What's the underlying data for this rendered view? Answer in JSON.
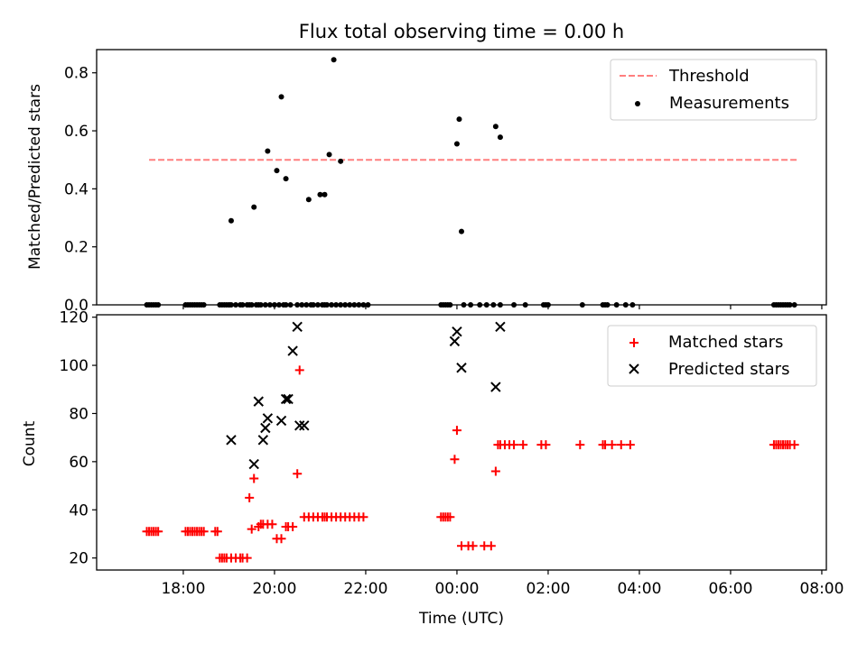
{
  "chart_data": [
    {
      "type": "scatter",
      "title": "Flux total observing time = 0.00 h",
      "ylabel": "Matched/Predicted stars",
      "xlabel": "",
      "x_unit": "hours relative to 00:00 UTC",
      "xlim": [
        -7.9,
        8.1
      ],
      "ylim": [
        0,
        0.88
      ],
      "yticks": [
        0.0,
        0.2,
        0.4,
        0.6,
        0.8
      ],
      "ytick_labels": [
        "0.0",
        "0.2",
        "0.4",
        "0.6",
        "0.8"
      ],
      "legend_position": "top-right",
      "series": [
        {
          "name": "Threshold",
          "kind": "dashed-line",
          "color": "#ff7f7f",
          "x": [
            -6.75,
            7.45
          ],
          "y": [
            0.5,
            0.5
          ]
        },
        {
          "name": "Measurements",
          "kind": "dot",
          "color": "#000000",
          "x": [
            -6.8,
            -6.75,
            -6.7,
            -6.65,
            -6.6,
            -6.55,
            -5.95,
            -5.9,
            -5.85,
            -5.8,
            -5.75,
            -5.7,
            -5.65,
            -5.6,
            -5.55,
            -5.2,
            -5.15,
            -5.1,
            -5.05,
            -5.0,
            -4.95,
            -4.85,
            -4.75,
            -4.7,
            -4.6,
            -4.55,
            -4.5,
            -4.4,
            -4.35,
            -4.3,
            -4.2,
            -4.1,
            -4.0,
            -3.9,
            -3.8,
            -3.75,
            -3.65,
            -3.5,
            -3.4,
            -3.3,
            -3.2,
            -3.15,
            -3.05,
            -2.95,
            -2.9,
            -2.85,
            -2.75,
            -2.65,
            -2.55,
            -2.45,
            -2.35,
            -2.25,
            -2.15,
            -2.05,
            -1.95,
            -0.35,
            -0.3,
            -0.25,
            -0.2,
            -0.15,
            0.15,
            0.3,
            0.5,
            0.65,
            0.8,
            0.95,
            1.25,
            1.5,
            1.9,
            1.95,
            2.0,
            2.75,
            3.2,
            3.25,
            3.3,
            3.5,
            3.7,
            3.85,
            6.95,
            7.0,
            7.05,
            7.1,
            7.15,
            7.2,
            7.25,
            7.3,
            7.4,
            -4.95,
            -4.45,
            -4.15,
            -3.95,
            -3.85,
            -3.75,
            -3.25,
            -3.0,
            -2.9,
            -2.8,
            -2.7,
            -2.55,
            0.0,
            0.05,
            0.1,
            0.85,
            0.95
          ],
          "y": [
            0,
            0,
            0,
            0,
            0,
            0,
            0,
            0,
            0,
            0,
            0,
            0,
            0,
            0,
            0,
            0,
            0,
            0,
            0,
            0,
            0,
            0,
            0,
            0,
            0,
            0,
            0,
            0,
            0,
            0,
            0,
            0,
            0,
            0,
            0,
            0,
            0,
            0,
            0,
            0,
            0,
            0,
            0,
            0,
            0,
            0,
            0,
            0,
            0,
            0,
            0,
            0,
            0,
            0,
            0,
            0,
            0,
            0,
            0,
            0,
            0,
            0,
            0,
            0,
            0,
            0,
            0,
            0,
            0,
            0,
            0,
            0,
            0,
            0,
            0,
            0,
            0,
            0,
            0,
            0,
            0,
            0,
            0,
            0,
            0,
            0,
            0,
            0.29,
            0.337,
            0.53,
            0.463,
            0.717,
            0.435,
            0.363,
            0.38,
            0.38,
            0.518,
            0.845,
            0.495,
            0.555,
            0.64,
            0.253,
            0.615,
            0.578
          ]
        }
      ]
    },
    {
      "type": "scatter",
      "title": "",
      "xlabel": "Time (UTC)",
      "ylabel": "Count",
      "x_unit": "hours relative to 00:00 UTC",
      "xlim": [
        -7.9,
        8.1
      ],
      "ylim": [
        15,
        121
      ],
      "yticks": [
        20,
        40,
        60,
        80,
        100,
        120
      ],
      "ytick_labels": [
        "20",
        "40",
        "60",
        "80",
        "100",
        "120"
      ],
      "xticks": [
        -6,
        -4,
        -2,
        0,
        2,
        4,
        6,
        8
      ],
      "xtick_labels": [
        "18:00",
        "20:00",
        "22:00",
        "00:00",
        "02:00",
        "04:00",
        "06:00",
        "08:00"
      ],
      "legend_position": "top-right",
      "series": [
        {
          "name": "Matched stars",
          "marker": "+",
          "color": "#ff0000",
          "x": [
            -6.8,
            -6.75,
            -6.7,
            -6.65,
            -6.6,
            -6.55,
            -5.95,
            -5.9,
            -5.85,
            -5.8,
            -5.75,
            -5.7,
            -5.65,
            -5.6,
            -5.55,
            -5.3,
            -5.25,
            -5.2,
            -5.15,
            -5.1,
            -5.05,
            -4.95,
            -4.85,
            -4.75,
            -4.7,
            -4.6,
            -4.55,
            -4.5,
            -4.45,
            -4.35,
            -4.3,
            -4.25,
            -4.15,
            -4.05,
            -3.95,
            -3.85,
            -3.75,
            -3.7,
            -3.6,
            -3.5,
            -3.45,
            -3.35,
            -3.25,
            -3.15,
            -3.05,
            -2.95,
            -2.9,
            -2.85,
            -2.75,
            -2.65,
            -2.55,
            -2.45,
            -2.35,
            -2.25,
            -2.15,
            -2.05,
            -0.35,
            -0.3,
            -0.25,
            -0.2,
            -0.15,
            -0.05,
            0.0,
            0.1,
            0.25,
            0.35,
            0.6,
            0.75,
            0.85,
            0.9,
            0.95,
            1.05,
            1.15,
            1.25,
            1.45,
            1.85,
            1.95,
            2.7,
            3.2,
            3.25,
            3.4,
            3.6,
            3.8,
            6.95,
            7.0,
            7.05,
            7.1,
            7.15,
            7.2,
            7.25,
            7.3,
            7.4
          ],
          "y": [
            31,
            31,
            31,
            31,
            31,
            31,
            31,
            31,
            31,
            31,
            31,
            31,
            31,
            31,
            31,
            31,
            31,
            20,
            20,
            20,
            20,
            20,
            20,
            20,
            20,
            20,
            45,
            32,
            53,
            33,
            34,
            34,
            34,
            34,
            28,
            28,
            33,
            33,
            33,
            55,
            98,
            37,
            37,
            37,
            37,
            37,
            37,
            37,
            37,
            37,
            37,
            37,
            37,
            37,
            37,
            37,
            37,
            37,
            37,
            37,
            37,
            61,
            73,
            25,
            25,
            25,
            25,
            25,
            56,
            67,
            67,
            67,
            67,
            67,
            67,
            67,
            67,
            67,
            67,
            67,
            67,
            67,
            67,
            67,
            67,
            67,
            67,
            67,
            67,
            67,
            67,
            67
          ]
        },
        {
          "name": "Predicted stars",
          "marker": "x",
          "color": "#000000",
          "x": [
            -4.95,
            -4.45,
            -4.35,
            -4.25,
            -4.2,
            -4.15,
            -3.85,
            -3.75,
            -3.7,
            -3.6,
            -3.5,
            -3.45,
            -3.35,
            -0.05,
            0.0,
            0.1,
            0.85,
            0.95
          ],
          "y": [
            69,
            59,
            85,
            69,
            74,
            78,
            77,
            86,
            86,
            106,
            116,
            75,
            75,
            110,
            114,
            99,
            91,
            116
          ]
        }
      ]
    }
  ]
}
